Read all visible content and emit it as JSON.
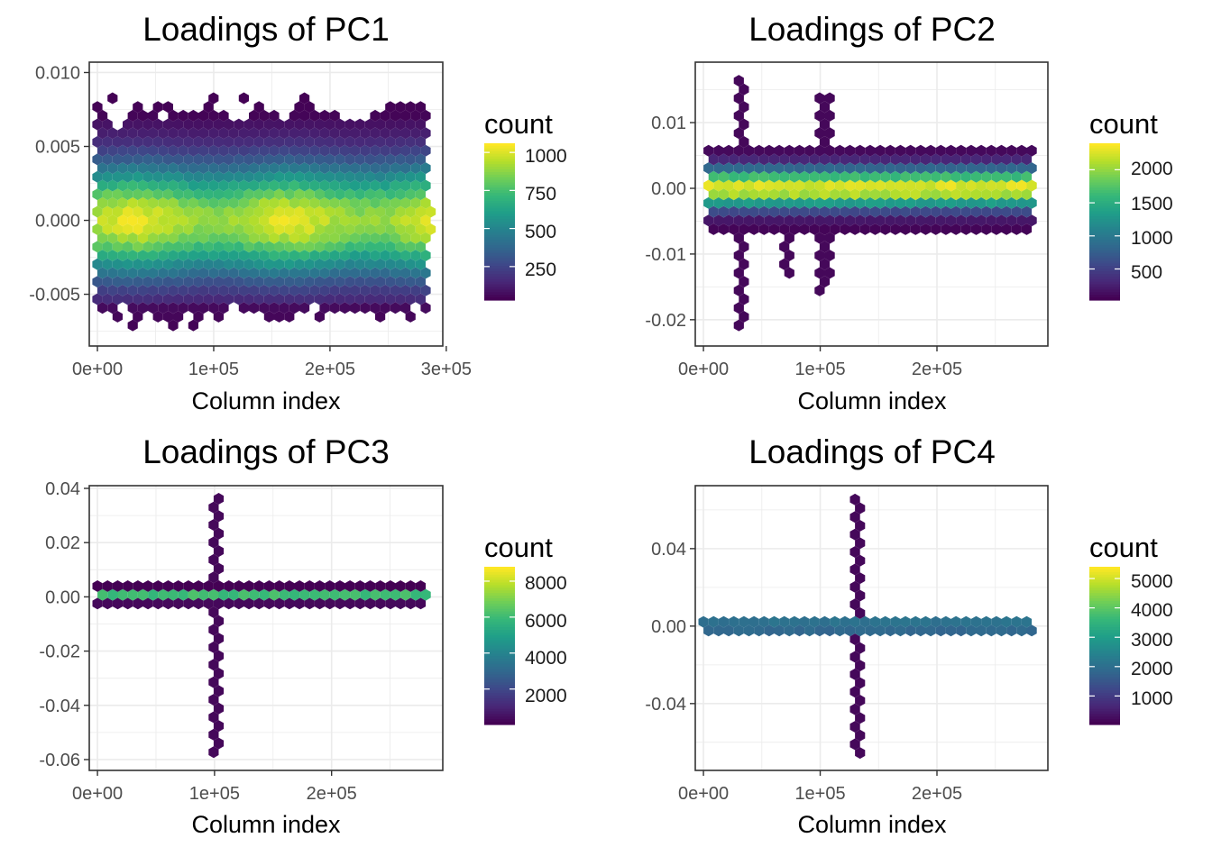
{
  "figure": {
    "colors": {
      "viridis": [
        "#440154",
        "#482878",
        "#3e4989",
        "#31688e",
        "#26828e",
        "#1f9e89",
        "#35b779",
        "#6ece58",
        "#b5de2b",
        "#fde725"
      ],
      "panel_border": "#333333",
      "grid": "#ebebeb",
      "tick_label": "#4d4d4d"
    }
  },
  "chart_data": [
    {
      "type": "heatmap",
      "title": "Loadings of PC1",
      "xlabel": "Column index",
      "ylabel": "",
      "x_ticks": [
        "0e+00",
        "1e+05",
        "2e+05",
        "3e+05"
      ],
      "x_tick_values": [
        0,
        100000,
        200000,
        300000
      ],
      "y_ticks": [
        "0.010",
        "0.005",
        "0.000",
        "-0.005"
      ],
      "y_tick_values": [
        0.01,
        0.005,
        0,
        -0.005
      ],
      "xlim": [
        -7000,
        297000
      ],
      "ylim": [
        -0.0085,
        0.0107
      ],
      "hex_x_range": [
        0,
        290000
      ],
      "hex_y_range": [
        -0.0077,
        0.0092
      ],
      "grid": true,
      "legend": {
        "title": "count",
        "position": "right",
        "ticks": [
          250,
          500,
          750,
          1000
        ],
        "min": 30,
        "max": 1060,
        "labels": [
          "1000",
          "750",
          "500",
          "250"
        ]
      }
    },
    {
      "type": "heatmap",
      "title": "Loadings of PC2",
      "xlabel": "Column index",
      "ylabel": "",
      "x_ticks": [
        "0e+00",
        "1e+05",
        "2e+05"
      ],
      "x_tick_values": [
        0,
        100000,
        200000
      ],
      "y_ticks": [
        "0.01",
        "0.00",
        "-0.01",
        "-0.02"
      ],
      "y_tick_values": [
        0.01,
        0,
        -0.01,
        -0.02
      ],
      "xlim": [
        -7000,
        295000
      ],
      "ylim": [
        -0.024,
        0.0192
      ],
      "hex_x_range": [
        0,
        282000
      ],
      "hex_y_range": [
        -0.0222,
        0.0175
      ],
      "grid": true,
      "legend": {
        "title": "count",
        "position": "right",
        "ticks": [
          500,
          1000,
          1500,
          2000
        ],
        "min": 30,
        "max": 2400,
        "labels": [
          "2000",
          "1500",
          "1000",
          "500"
        ]
      }
    },
    {
      "type": "heatmap",
      "title": "Loadings of PC3",
      "xlabel": "Column index",
      "ylabel": "",
      "x_ticks": [
        "0e+00",
        "1e+05",
        "2e+05"
      ],
      "x_tick_values": [
        0,
        100000,
        200000
      ],
      "y_ticks": [
        "0.04",
        "0.02",
        "0.00",
        "-0.02",
        "-0.04",
        "-0.06"
      ],
      "y_tick_values": [
        0.04,
        0.02,
        0,
        -0.02,
        -0.04,
        -0.06
      ],
      "xlim": [
        -7000,
        295000
      ],
      "ylim": [
        -0.064,
        0.041
      ],
      "hex_x_range": [
        0,
        282000
      ],
      "hex_y_range": [
        -0.0605,
        0.0365
      ],
      "grid": true,
      "legend": {
        "title": "count",
        "position": "right",
        "ticks": [
          2000,
          4000,
          6000,
          8000
        ],
        "min": 30,
        "max": 8800,
        "labels": [
          "8000",
          "6000",
          "4000",
          "2000"
        ]
      }
    },
    {
      "type": "heatmap",
      "title": "Loadings of PC4",
      "xlabel": "Column index",
      "ylabel": "",
      "x_ticks": [
        "0e+00",
        "1e+05",
        "2e+05"
      ],
      "x_tick_values": [
        0,
        100000,
        200000
      ],
      "y_ticks": [
        "0.04",
        "0.00",
        "-0.04"
      ],
      "y_tick_values": [
        0.04,
        0,
        -0.04
      ],
      "xlim": [
        -7000,
        295000
      ],
      "ylim": [
        -0.0745,
        0.0725
      ],
      "hex_x_range": [
        0,
        282000
      ],
      "hex_y_range": [
        -0.07,
        0.066
      ],
      "grid": true,
      "legend": {
        "title": "count",
        "position": "right",
        "ticks": [
          1000,
          2000,
          3000,
          4000,
          5000
        ],
        "min": 30,
        "max": 5400,
        "labels": [
          "5000",
          "4000",
          "3000",
          "2000",
          "1000"
        ]
      }
    }
  ]
}
